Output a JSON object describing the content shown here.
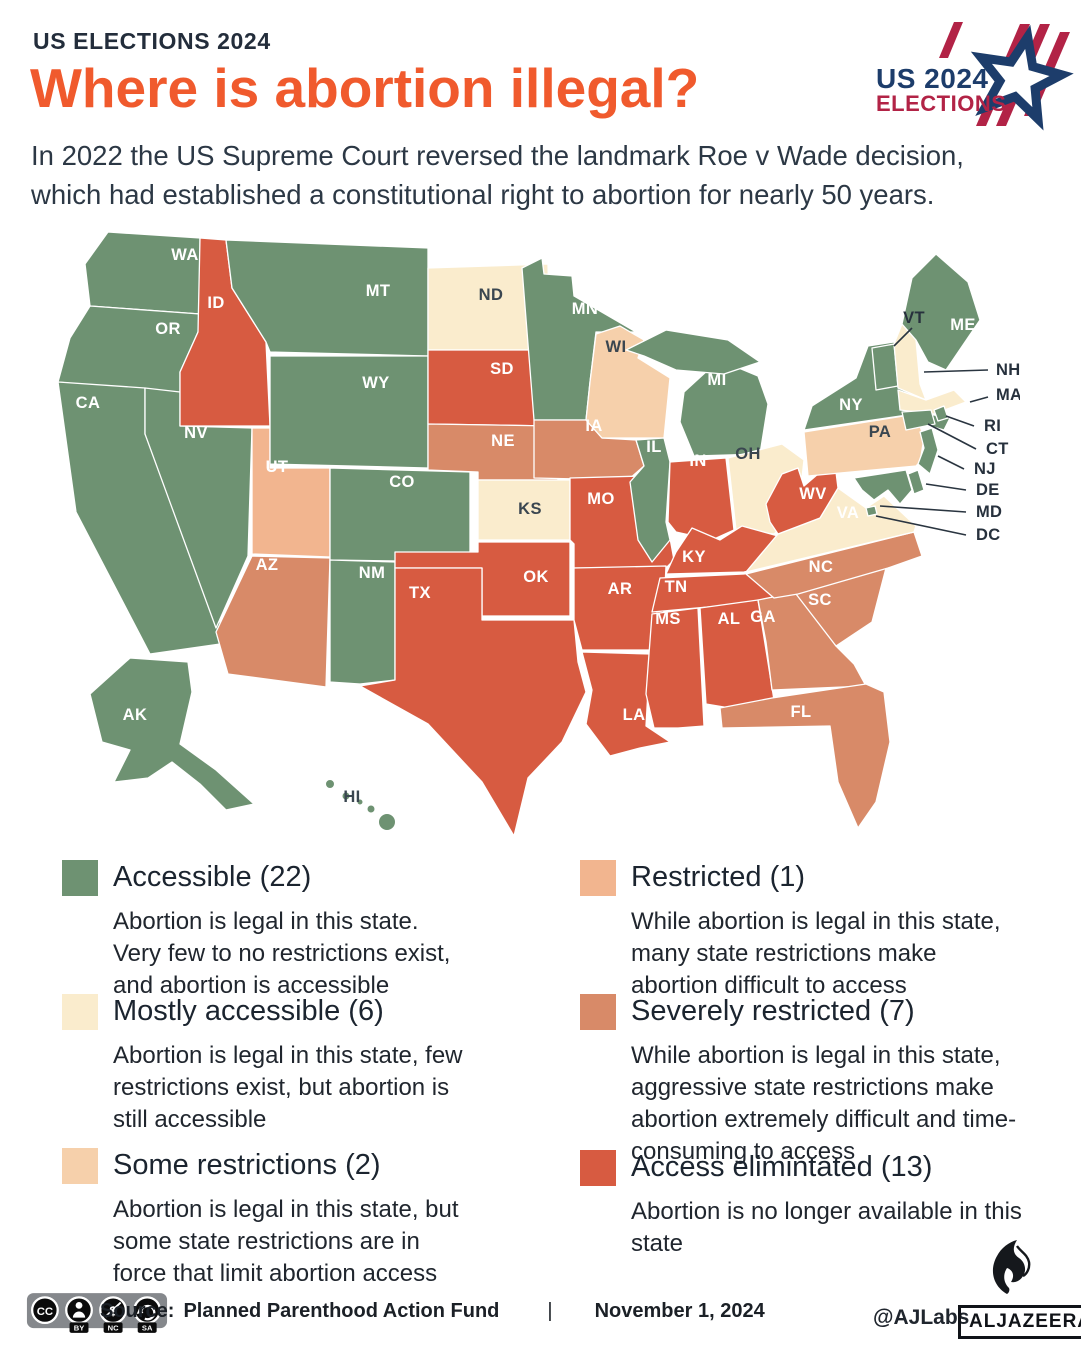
{
  "header": {
    "kicker": "US ELECTIONS 2024",
    "title": "Where is abortion illegal?",
    "subtitle": "In 2022 the US Supreme Court reversed the landmark Roe v Wade decision, which had established a constitutional right to abortion for nearly 50 years.",
    "logo": {
      "line1": "US 2024",
      "line2": "ELECTIONS"
    }
  },
  "colors": {
    "accessible": "#6e9272",
    "mostly_accessible": "#faeccd",
    "some_restrictions": "#f6d0ab",
    "restricted": "#f2b58f",
    "severely_restricted": "#d88a68",
    "access_eliminated": "#d75b41",
    "map_border": "#ffffff",
    "map_label_light": "#ffffff",
    "map_label_dark": "#3a4650",
    "callout_text": "#27313d",
    "leader_line": "#2a3540",
    "title_orange": "#f05a2d",
    "text_navy": "#2c3845",
    "logo_navy": "#1d3d6b",
    "logo_red": "#b22346"
  },
  "legend": [
    {
      "key": "accessible",
      "label": "Accessible (22)",
      "description": "Abortion is legal in this state. Very few to no restrictions exist, and abortion is accessible"
    },
    {
      "key": "mostly_accessible",
      "label": "Mostly accessible (6)",
      "description": "Abortion is legal in this state, few restrictions exist, but abortion is still accessible"
    },
    {
      "key": "some_restrictions",
      "label": "Some restrictions (2)",
      "description": "Abortion is legal in this state, but some state restrictions are in force that limit abortion access"
    },
    {
      "key": "restricted",
      "label": "Restricted (1)",
      "description": "While abortion is legal in this state, many state restrictions make abortion difficult to access"
    },
    {
      "key": "severely_restricted",
      "label": "Severely restricted (7)",
      "description": "While abortion is legal in this state, aggressive state restrictions make abortion extremely difficult and time-consuming to access"
    },
    {
      "key": "access_eliminated",
      "label": "Access elimintated (13)",
      "description": "Abortion is no longer available in this state"
    }
  ],
  "map": {
    "states": [
      {
        "id": "WA",
        "category": "accessible"
      },
      {
        "id": "OR",
        "category": "accessible"
      },
      {
        "id": "CA",
        "category": "accessible"
      },
      {
        "id": "NV",
        "category": "accessible"
      },
      {
        "id": "ID",
        "category": "access_eliminated"
      },
      {
        "id": "UT",
        "category": "restricted"
      },
      {
        "id": "AZ",
        "category": "severely_restricted"
      },
      {
        "id": "MT",
        "category": "accessible"
      },
      {
        "id": "WY",
        "category": "accessible"
      },
      {
        "id": "CO",
        "category": "accessible"
      },
      {
        "id": "NM",
        "category": "accessible"
      },
      {
        "id": "ND",
        "category": "mostly_accessible"
      },
      {
        "id": "SD",
        "category": "access_eliminated"
      },
      {
        "id": "NE",
        "category": "severely_restricted"
      },
      {
        "id": "KS",
        "category": "mostly_accessible"
      },
      {
        "id": "OK",
        "category": "access_eliminated"
      },
      {
        "id": "TX",
        "category": "access_eliminated"
      },
      {
        "id": "MN",
        "category": "accessible"
      },
      {
        "id": "IA",
        "category": "severely_restricted"
      },
      {
        "id": "MO",
        "category": "access_eliminated"
      },
      {
        "id": "AR",
        "category": "access_eliminated"
      },
      {
        "id": "LA",
        "category": "access_eliminated"
      },
      {
        "id": "WI",
        "category": "some_restrictions"
      },
      {
        "id": "IL",
        "category": "accessible"
      },
      {
        "id": "MS",
        "category": "access_eliminated"
      },
      {
        "id": "MI",
        "category": "accessible"
      },
      {
        "id": "IN",
        "category": "access_eliminated"
      },
      {
        "id": "OH",
        "category": "mostly_accessible"
      },
      {
        "id": "KY",
        "category": "access_eliminated"
      },
      {
        "id": "TN",
        "category": "access_eliminated"
      },
      {
        "id": "AL",
        "category": "access_eliminated"
      },
      {
        "id": "GA",
        "category": "severely_restricted"
      },
      {
        "id": "FL",
        "category": "severely_restricted"
      },
      {
        "id": "SC",
        "category": "severely_restricted"
      },
      {
        "id": "NC",
        "category": "severely_restricted"
      },
      {
        "id": "VA",
        "category": "mostly_accessible"
      },
      {
        "id": "WV",
        "category": "access_eliminated"
      },
      {
        "id": "PA",
        "category": "some_restrictions"
      },
      {
        "id": "NY",
        "category": "accessible"
      },
      {
        "id": "VT",
        "category": "accessible"
      },
      {
        "id": "NH",
        "category": "mostly_accessible"
      },
      {
        "id": "ME",
        "category": "accessible"
      },
      {
        "id": "MA",
        "category": "mostly_accessible"
      },
      {
        "id": "RI",
        "category": "accessible"
      },
      {
        "id": "CT",
        "category": "accessible"
      },
      {
        "id": "NJ",
        "category": "accessible"
      },
      {
        "id": "DE",
        "category": "accessible"
      },
      {
        "id": "MD",
        "category": "accessible"
      },
      {
        "id": "DC",
        "category": "accessible"
      },
      {
        "id": "AK",
        "category": "accessible"
      },
      {
        "id": "HI",
        "category": "accessible"
      }
    ],
    "callouts": [
      "VT",
      "NH",
      "MA",
      "RI",
      "CT",
      "NJ",
      "DE",
      "MD",
      "DC"
    ]
  },
  "footer": {
    "license": "CC BY-NC-SA",
    "source_label": "Source:",
    "source": "Planned Parenthood Action Fund",
    "separator": "|",
    "date": "November 1, 2024",
    "credit": "@AJLabs",
    "brand": "ALJAZEERA"
  }
}
